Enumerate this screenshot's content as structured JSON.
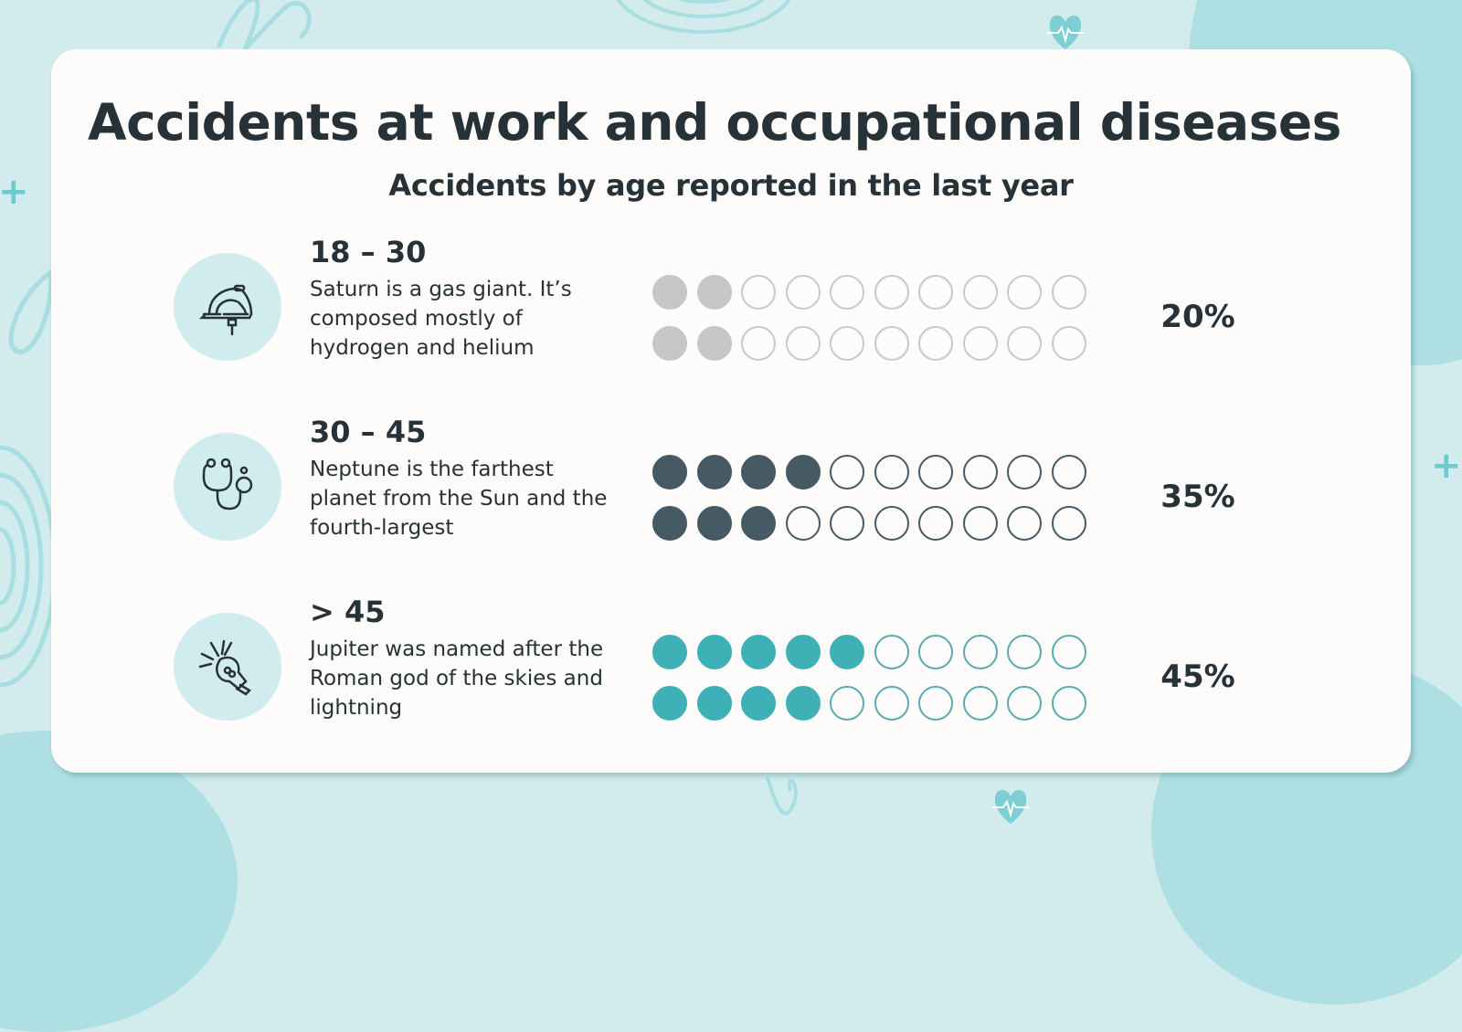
{
  "slide": {
    "title": "Accidents at work and occupational diseases",
    "subtitle": "Accidents by age reported in the last year",
    "colors": {
      "background": "#d2ecee",
      "card": "#fdfcfb",
      "text": "#263238",
      "icon_circle": "#d1ecee"
    }
  },
  "rows": [
    {
      "icon": "hard-hat-icon",
      "age": "18 – 30",
      "description": "Saturn is a gas giant. It’s composed mostly of hydrogen and helium",
      "percent": "20%",
      "filled_color": "#c6c6c6",
      "empty_border": "#c9c9c9",
      "dots_row1_filled": 2,
      "dots_row2_filled": 2
    },
    {
      "icon": "stethoscope-icon",
      "age": "30 – 45",
      "description": "Neptune is the farthest planet from the Sun and the fourth-largest",
      "percent": "35%",
      "filled_color": "#455a64",
      "empty_border": "#455a64",
      "dots_row1_filled": 4,
      "dots_row2_filled": 3
    },
    {
      "icon": "lightbulb-icon",
      "age": "> 45",
      "description": "Jupiter was named after the Roman god of the skies and lightning",
      "percent": "45%",
      "filled_color": "#3fb0b6",
      "empty_border": "#5aa9ac",
      "dots_row1_filled": 5,
      "dots_row2_filled": 4
    }
  ],
  "chart_data": {
    "type": "bar",
    "title": "Accidents by age reported in the last year",
    "categories": [
      "18 – 30",
      "30 – 45",
      "> 45"
    ],
    "values": [
      20,
      35,
      45
    ],
    "unit": "%",
    "representation": "pictogram dots: 2 rows × 10 dots, each dot = 5%",
    "dots_per_category": [
      4,
      7,
      9
    ],
    "total_dots": 20
  }
}
